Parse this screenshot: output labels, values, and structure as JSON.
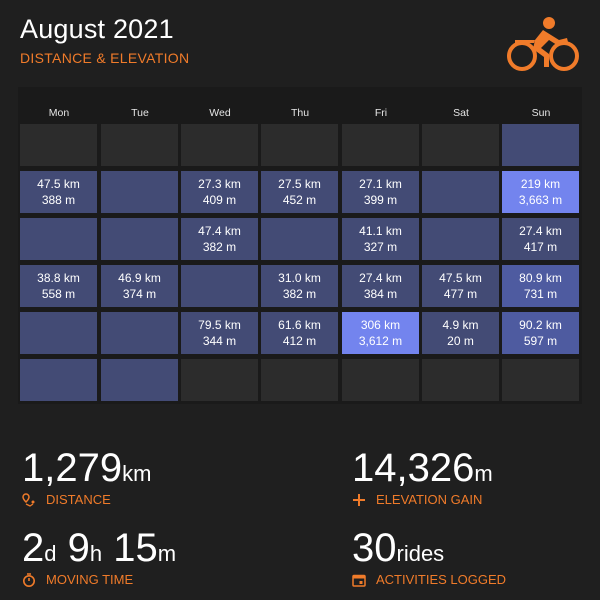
{
  "header": {
    "title": "August 2021",
    "subtitle": "DISTANCE & ELEVATION"
  },
  "colors": {
    "accent": "#f07b2a",
    "cell_active": "#434b75",
    "cell_mid": "#4e5ba0",
    "cell_high": "#7384ee"
  },
  "calendar": {
    "days": [
      "Mon",
      "Tue",
      "Wed",
      "Thu",
      "Fri",
      "Sat",
      "Sun"
    ],
    "weeks": [
      [
        null,
        null,
        null,
        null,
        null,
        null,
        {
          "empty": true
        }
      ],
      [
        {
          "d": "47.5 km",
          "e": "388 m"
        },
        {
          "empty": true
        },
        {
          "d": "27.3 km",
          "e": "409 m"
        },
        {
          "d": "27.5 km",
          "e": "452 m"
        },
        {
          "d": "27.1 km",
          "e": "399 m"
        },
        {
          "empty": true
        },
        {
          "d": "219 km",
          "e": "3,663 m",
          "level": "high"
        }
      ],
      [
        {
          "empty": true
        },
        {
          "empty": true
        },
        {
          "d": "47.4 km",
          "e": "382 m"
        },
        {
          "empty": true
        },
        {
          "d": "41.1 km",
          "e": "327 m"
        },
        {
          "empty": true
        },
        {
          "d": "27.4 km",
          "e": "417 m"
        }
      ],
      [
        {
          "d": "38.8 km",
          "e": "558 m"
        },
        {
          "d": "46.9 km",
          "e": "374 m"
        },
        {
          "empty": true
        },
        {
          "d": "31.0 km",
          "e": "382 m"
        },
        {
          "d": "27.4 km",
          "e": "384 m"
        },
        {
          "d": "47.5 km",
          "e": "477 m"
        },
        {
          "d": "80.9 km",
          "e": "731 m",
          "level": "mid"
        }
      ],
      [
        {
          "empty": true
        },
        {
          "empty": true
        },
        {
          "d": "79.5 km",
          "e": "344 m"
        },
        {
          "d": "61.6 km",
          "e": "412 m"
        },
        {
          "d": "306 km",
          "e": "3,612 m",
          "level": "high"
        },
        {
          "d": "4.9 km",
          "e": "20 m"
        },
        {
          "d": "90.2 km",
          "e": "597 m",
          "level": "mid"
        }
      ],
      [
        {
          "empty": true
        },
        {
          "empty": true
        },
        null,
        null,
        null,
        null,
        null
      ]
    ]
  },
  "stats": {
    "distance": {
      "value": "1,279",
      "unit": "km",
      "label": "DISTANCE",
      "icon": "route-pin-icon"
    },
    "elevation": {
      "value": "14,326",
      "unit": "m",
      "label": "ELEVATION GAIN",
      "icon": "plus-icon"
    },
    "moving_time": {
      "days": "2",
      "days_unit": "d",
      "hours": "9",
      "hours_unit": "h",
      "minutes": "15",
      "minutes_unit": "m",
      "label": "MOVING TIME",
      "icon": "stopwatch-icon"
    },
    "activities": {
      "value": "30",
      "unit": "rides",
      "label": "ACTIVITIES LOGGED",
      "icon": "calendar-icon"
    }
  }
}
